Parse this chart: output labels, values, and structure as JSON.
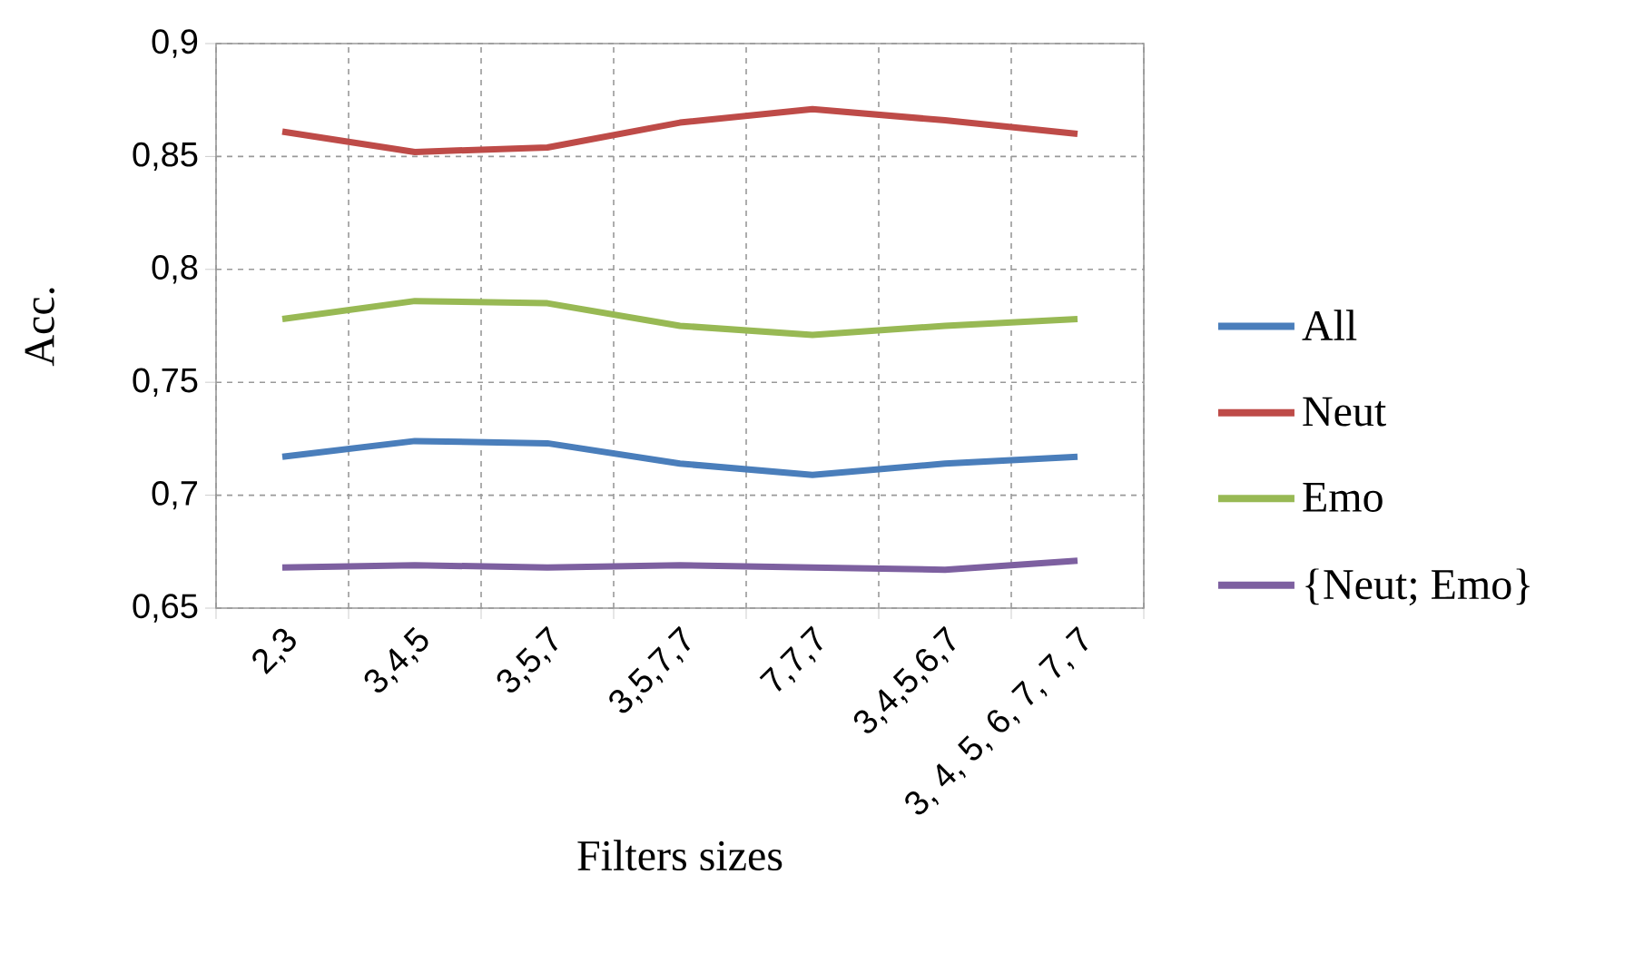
{
  "chart_data": {
    "type": "line",
    "xlabel": "Filters sizes",
    "ylabel": "Acc.",
    "categories": [
      "2,3",
      "3,4,5",
      "3,5,7",
      "3,5,7,7",
      "7,7,7",
      "3,4,5,6,7",
      "3, 4, 5, 6, 7, 7, 7"
    ],
    "series": [
      {
        "name": "All",
        "color": "#4a7ebb",
        "values": [
          0.717,
          0.724,
          0.723,
          0.714,
          0.709,
          0.714,
          0.717
        ]
      },
      {
        "name": "Neut",
        "color": "#be4b48",
        "values": [
          0.861,
          0.852,
          0.854,
          0.865,
          0.871,
          0.866,
          0.86
        ]
      },
      {
        "name": "Emo",
        "color": "#98b954",
        "values": [
          0.778,
          0.786,
          0.785,
          0.775,
          0.771,
          0.775,
          0.778
        ]
      },
      {
        "name": "{Neut; Emo}",
        "color": "#7d60a0",
        "values": [
          0.668,
          0.669,
          0.668,
          0.669,
          0.668,
          0.667,
          0.671
        ]
      }
    ],
    "ylim": [
      0.65,
      0.9
    ],
    "yticks": [
      {
        "value": 0.65,
        "label": "0,65"
      },
      {
        "value": 0.7,
        "label": "0,7"
      },
      {
        "value": 0.75,
        "label": "0,75"
      },
      {
        "value": 0.8,
        "label": "0,8"
      },
      {
        "value": 0.85,
        "label": "0,85"
      },
      {
        "value": 0.9,
        "label": "0,9"
      }
    ],
    "grid": true,
    "legend": "right",
    "marker": "none",
    "line_style": "solid"
  }
}
